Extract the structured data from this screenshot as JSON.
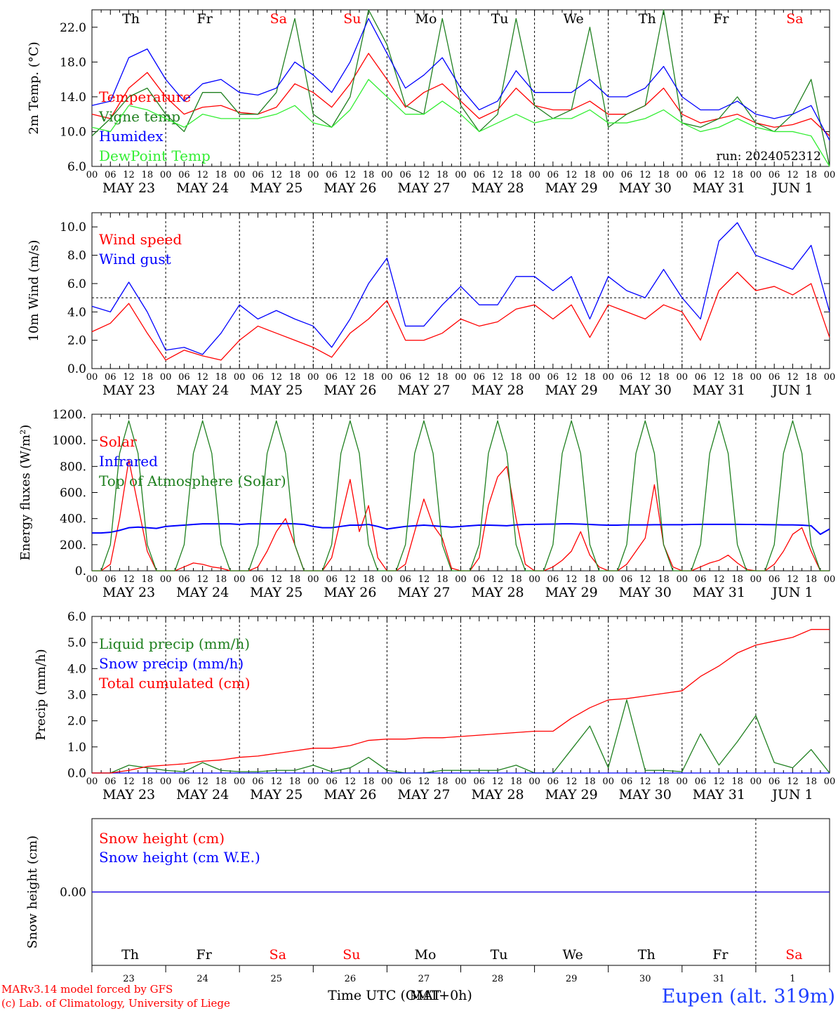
{
  "station_title": "Eupen (alt. 319m)",
  "run_label": "run: 2024052312",
  "credits": [
    "MARv3.14 model forced by GFS",
    "(c) Lab. of Climatology, University of Liege"
  ],
  "time_axis_label": "Time UTC (GMT+0h)",
  "time_axis_overlap_label": "MAT",
  "day_names": [
    "Th",
    "Fr",
    "Sa",
    "Su",
    "Mo",
    "Tu",
    "We",
    "Th",
    "Fr",
    "Sa"
  ],
  "day_name_colors": [
    "#000000",
    "#000000",
    "#ff0000",
    "#ff0000",
    "#000000",
    "#000000",
    "#000000",
    "#000000",
    "#000000",
    "#ff0000"
  ],
  "date_labels": [
    "MAY 23",
    "MAY 24",
    "MAY 25",
    "MAY 26",
    "MAY 27",
    "MAY 28",
    "MAY 29",
    "MAY 30",
    "MAY 31",
    "JUN  1"
  ],
  "day_numbers": [
    "23",
    "24",
    "25",
    "26",
    "27",
    "28",
    "29",
    "30",
    "31",
    "1"
  ],
  "hour_ticks": [
    "00",
    "06",
    "12",
    "18"
  ],
  "colors": {
    "red": "#ff0000",
    "green": "#00a000",
    "darkgreen": "#208020",
    "blue": "#0000ff",
    "lightgreen": "#33ee33",
    "purple": "#8040a0",
    "title_blue": "#2040ff"
  },
  "chart_data": [
    {
      "type": "line",
      "ylabel": "2m Temp. (°C)",
      "ylim": [
        6,
        24
      ],
      "yticks": [
        "6.0",
        "10.0",
        "14.0",
        "18.0",
        "22.0"
      ],
      "x_hours_since_start": [
        0,
        6,
        12,
        18,
        24,
        30,
        36,
        42,
        48,
        54,
        60,
        66,
        72,
        78,
        84,
        90,
        96,
        102,
        108,
        114,
        120,
        126,
        132,
        138,
        144,
        150,
        156,
        162,
        168,
        174,
        180,
        186,
        192,
        198,
        204,
        210,
        216,
        222,
        228,
        234,
        240
      ],
      "series": [
        {
          "name": "Temperature",
          "color": "#ff0000",
          "values": [
            12.0,
            11.5,
            15.0,
            16.8,
            14.0,
            12.0,
            12.8,
            13.0,
            12.2,
            12.0,
            12.8,
            15.5,
            14.5,
            12.8,
            15.5,
            19.0,
            16.0,
            12.8,
            14.5,
            15.5,
            13.5,
            11.5,
            12.5,
            15.0,
            13.0,
            12.5,
            12.5,
            13.5,
            12.0,
            12.0,
            13.0,
            15.0,
            12.0,
            11.0,
            11.5,
            12.0,
            11.0,
            10.5,
            10.8,
            11.5,
            9.5
          ]
        },
        {
          "name": "Vigne temp",
          "color": "#208020",
          "values": [
            9.5,
            11.5,
            14.0,
            15.0,
            12.0,
            10.0,
            14.5,
            14.5,
            12.0,
            12.0,
            14.5,
            23.0,
            12.0,
            10.5,
            14.0,
            24.0,
            20.0,
            13.0,
            12.0,
            23.0,
            13.0,
            10.0,
            12.0,
            23.0,
            13.0,
            11.5,
            12.5,
            22.0,
            10.5,
            12.0,
            13.0,
            24.0,
            11.0,
            10.5,
            11.5,
            14.0,
            11.0,
            10.0,
            12.0,
            16.0,
            6.0
          ]
        },
        {
          "name": "Humidex",
          "color": "#0000ff",
          "values": [
            13.0,
            13.5,
            18.5,
            19.5,
            16.0,
            13.5,
            15.5,
            16.0,
            14.5,
            14.2,
            15.0,
            18.0,
            16.5,
            14.5,
            18.0,
            23.0,
            19.0,
            15.0,
            16.5,
            18.5,
            15.0,
            12.5,
            13.5,
            17.0,
            14.5,
            14.5,
            14.5,
            16.0,
            14.0,
            14.0,
            15.0,
            17.5,
            14.0,
            12.5,
            12.5,
            13.5,
            12.0,
            11.5,
            12.0,
            13.0,
            9.0
          ]
        },
        {
          "name": "DewPoint Temp",
          "color": "#33ee33",
          "values": [
            10.5,
            10.0,
            13.0,
            12.5,
            11.5,
            10.5,
            12.0,
            11.5,
            11.5,
            11.5,
            12.0,
            13.0,
            11.0,
            10.5,
            12.5,
            16.0,
            14.0,
            12.0,
            12.0,
            13.5,
            12.0,
            10.0,
            11.0,
            12.0,
            11.0,
            11.5,
            11.5,
            12.5,
            11.0,
            11.0,
            11.5,
            12.5,
            11.0,
            10.0,
            10.5,
            11.5,
            10.5,
            10.0,
            10.0,
            9.5,
            6.0
          ]
        }
      ]
    },
    {
      "type": "line",
      "ylabel": "10m Wind (m/s)",
      "ylim": [
        0,
        11
      ],
      "yticks": [
        "0.0",
        "2.0",
        "4.0",
        "6.0",
        "8.0",
        "10.0"
      ],
      "reference_line": 5,
      "x_hours_since_start": [
        0,
        6,
        12,
        18,
        24,
        30,
        36,
        42,
        48,
        54,
        60,
        66,
        72,
        78,
        84,
        90,
        96,
        102,
        108,
        114,
        120,
        126,
        132,
        138,
        144,
        150,
        156,
        162,
        168,
        174,
        180,
        186,
        192,
        198,
        204,
        210,
        216,
        222,
        228,
        234,
        240
      ],
      "series": [
        {
          "name": "Wind speed",
          "color": "#ff0000",
          "values": [
            2.6,
            3.2,
            4.6,
            2.5,
            0.6,
            1.3,
            0.9,
            0.6,
            2.0,
            3.0,
            2.5,
            2.0,
            1.5,
            0.8,
            2.5,
            3.5,
            4.8,
            2.0,
            2.0,
            2.5,
            3.5,
            3.0,
            3.3,
            4.2,
            4.5,
            3.5,
            4.5,
            2.2,
            4.5,
            4.0,
            3.5,
            4.5,
            4.0,
            2.0,
            5.5,
            6.8,
            5.5,
            5.8,
            5.2,
            6.0,
            2.2
          ]
        },
        {
          "name": "Wind gust",
          "color": "#0000ff",
          "values": [
            4.4,
            4.0,
            6.1,
            4.0,
            1.3,
            1.5,
            1.0,
            2.5,
            4.5,
            3.5,
            4.1,
            3.5,
            3.0,
            1.5,
            3.5,
            6.0,
            7.8,
            3.0,
            3.0,
            4.5,
            5.8,
            4.5,
            4.5,
            6.5,
            6.5,
            5.5,
            6.5,
            3.5,
            6.5,
            5.5,
            5.0,
            7.0,
            5.0,
            3.5,
            9.0,
            10.3,
            8.0,
            7.5,
            7.0,
            8.7,
            4.0
          ]
        }
      ]
    },
    {
      "type": "line",
      "ylabel": "Energy fluxes (W/m²)",
      "ylim": [
        0,
        1200
      ],
      "yticks": [
        "0.",
        "200.",
        "400.",
        "600.",
        "800.",
        "1000.",
        "1200."
      ],
      "x_hours_since_start": [
        0,
        3,
        6,
        9,
        12,
        15,
        18,
        21,
        24,
        27,
        30,
        33,
        36,
        39,
        42,
        45,
        48,
        51,
        54,
        57,
        60,
        63,
        66,
        69,
        72,
        75,
        78,
        81,
        84,
        87,
        90,
        93,
        96,
        99,
        102,
        105,
        108,
        111,
        114,
        117,
        120,
        123,
        126,
        129,
        132,
        135,
        138,
        141,
        144,
        147,
        150,
        153,
        156,
        159,
        162,
        165,
        168,
        171,
        174,
        177,
        180,
        183,
        186,
        189,
        192,
        195,
        198,
        201,
        204,
        207,
        210,
        213,
        216,
        219,
        222,
        225,
        228,
        231,
        234,
        237,
        240
      ],
      "series": [
        {
          "name": "Solar",
          "color": "#ff0000",
          "values": [
            0,
            0,
            50,
            400,
            850,
            500,
            150,
            0,
            0,
            0,
            30,
            60,
            50,
            30,
            20,
            0,
            0,
            0,
            30,
            150,
            300,
            400,
            200,
            0,
            0,
            0,
            100,
            400,
            700,
            300,
            500,
            100,
            0,
            0,
            50,
            300,
            550,
            350,
            250,
            20,
            0,
            0,
            100,
            500,
            720,
            800,
            400,
            50,
            0,
            0,
            30,
            80,
            150,
            300,
            120,
            30,
            0,
            0,
            50,
            150,
            250,
            660,
            200,
            30,
            0,
            0,
            30,
            60,
            80,
            120,
            60,
            10,
            0,
            0,
            50,
            150,
            280,
            330,
            150,
            0,
            0
          ]
        },
        {
          "name": "Infrared",
          "color": "#0000ff",
          "values": [
            290,
            290,
            295,
            310,
            330,
            335,
            330,
            325,
            340,
            345,
            350,
            355,
            360,
            360,
            360,
            360,
            355,
            360,
            360,
            360,
            360,
            362,
            360,
            355,
            340,
            330,
            330,
            340,
            350,
            350,
            355,
            340,
            320,
            330,
            340,
            345,
            350,
            345,
            340,
            335,
            340,
            345,
            350,
            350,
            348,
            345,
            352,
            355,
            356,
            357,
            358,
            360,
            360,
            358,
            355,
            352,
            350,
            350,
            352,
            352,
            352,
            353,
            353,
            353,
            353,
            355,
            356,
            356,
            356,
            356,
            356,
            355,
            355,
            354,
            353,
            352,
            352,
            350,
            345,
            280,
            320
          ]
        },
        {
          "name": "Top of Atmosphere (Solar)",
          "color": "#208020",
          "values": [
            0,
            0,
            200,
            900,
            1150,
            900,
            200,
            0,
            0,
            0,
            200,
            900,
            1150,
            900,
            200,
            0,
            0,
            0,
            200,
            900,
            1150,
            900,
            200,
            0,
            0,
            0,
            200,
            900,
            1150,
            900,
            200,
            0,
            0,
            0,
            200,
            900,
            1150,
            900,
            200,
            0,
            0,
            0,
            200,
            900,
            1150,
            900,
            200,
            0,
            0,
            0,
            200,
            900,
            1150,
            900,
            200,
            0,
            0,
            0,
            200,
            900,
            1150,
            900,
            200,
            0,
            0,
            0,
            200,
            900,
            1150,
            900,
            200,
            0,
            0,
            0,
            200,
            900,
            1150,
            900,
            200,
            0,
            0
          ]
        }
      ]
    },
    {
      "type": "line",
      "ylabel": "Precip (mm/h)",
      "ylim": [
        0,
        6
      ],
      "yticks": [
        "0.0",
        "1.0",
        "2.0",
        "3.0",
        "4.0",
        "5.0",
        "6.0"
      ],
      "x_hours_since_start": [
        0,
        6,
        12,
        18,
        24,
        30,
        36,
        42,
        48,
        54,
        60,
        66,
        72,
        78,
        84,
        90,
        96,
        102,
        108,
        114,
        120,
        126,
        132,
        138,
        144,
        150,
        156,
        162,
        168,
        174,
        180,
        186,
        192,
        198,
        204,
        210,
        216,
        222,
        228,
        234,
        240
      ],
      "series": [
        {
          "name": "Liquid precip (mm/h)",
          "color": "#208020",
          "values": [
            0,
            0,
            0.3,
            0.2,
            0.1,
            0.05,
            0.4,
            0.1,
            0.05,
            0.05,
            0.1,
            0.1,
            0.3,
            0.05,
            0.2,
            0.6,
            0.1,
            0,
            0,
            0.1,
            0.1,
            0.1,
            0.1,
            0.3,
            0,
            0,
            0.9,
            1.8,
            0.2,
            2.8,
            0.1,
            0.1,
            0.05,
            1.5,
            0.3,
            1.2,
            2.2,
            0.4,
            0.2,
            0.9,
            0
          ]
        },
        {
          "name": "Snow precip (mm/h)",
          "color": "#0000ff",
          "values": [
            0,
            0,
            0,
            0,
            0,
            0,
            0,
            0,
            0,
            0,
            0,
            0,
            0,
            0,
            0,
            0,
            0,
            0,
            0,
            0,
            0,
            0,
            0,
            0,
            0,
            0,
            0,
            0,
            0,
            0,
            0,
            0,
            0,
            0,
            0,
            0,
            0,
            0,
            0,
            0,
            0
          ]
        },
        {
          "name": "Total cumulated (cm)",
          "color": "#ff0000",
          "values": [
            0,
            0,
            0.1,
            0.25,
            0.3,
            0.35,
            0.45,
            0.5,
            0.6,
            0.65,
            0.75,
            0.85,
            0.95,
            0.95,
            1.05,
            1.25,
            1.3,
            1.3,
            1.35,
            1.35,
            1.4,
            1.45,
            1.5,
            1.55,
            1.6,
            1.6,
            2.1,
            2.5,
            2.8,
            2.85,
            2.95,
            3.05,
            3.15,
            3.7,
            4.1,
            4.6,
            4.9,
            5.05,
            5.2,
            5.5,
            5.5
          ]
        }
      ]
    },
    {
      "type": "line",
      "ylabel": "Snow height (cm)",
      "ylim": [
        -1,
        1
      ],
      "yticks": [
        "0.00"
      ],
      "x_hours_since_start": [
        0,
        240
      ],
      "series": [
        {
          "name": "Snow height (cm)",
          "color": "#ff0000",
          "values": [
            0,
            0
          ]
        },
        {
          "name": "Snow height (cm W.E.)",
          "color": "#0000ff",
          "values": [
            0,
            0
          ]
        }
      ]
    }
  ]
}
